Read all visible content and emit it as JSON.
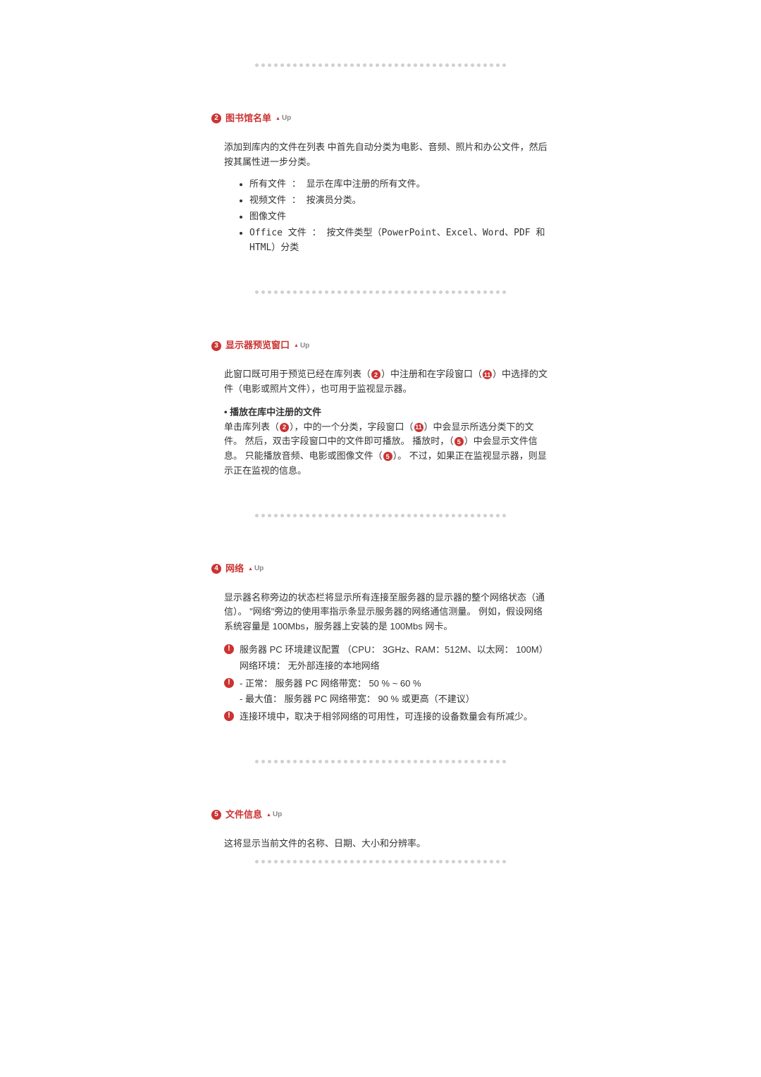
{
  "divider": {
    "dot_color": "#d0d0d0",
    "dot_count": 40
  },
  "up_label": "Up",
  "section2": {
    "num": "2",
    "title": "图书馆名单",
    "intro": "添加到库内的文件在列表 中首先自动分类为电影、音频、照片和办公文件，然后按其属性进一步分类。",
    "items": [
      "所有文件 ： 显示在库中注册的所有文件。",
      "视频文件 ： 按演员分类。",
      "图像文件",
      "Office 文件 ： 按文件类型（PowerPoint、Excel、Word、PDF 和 HTML）分类"
    ]
  },
  "section3": {
    "num": "3",
    "title": "显示器预览窗口",
    "intro_a": "此窗口既可用于预览已经在库列表（",
    "ref1": "2",
    "intro_b": "）中注册和在字段窗口（",
    "ref2": "11",
    "intro_c": "）中选择的文件（电影或照片文件），也可用于监视显示器。",
    "sub_title": "播放在库中注册的文件",
    "sub_a": "单击库列表（",
    "sub_ref1": "2",
    "sub_b": "），中的一个分类，字段窗口（",
    "sub_ref2": "11",
    "sub_c": "）中会显示所选分类下的文件。 然后，双击字段窗口中的文件即可播放。 播放时，（",
    "sub_ref3": "5",
    "sub_d": "）中会显示文件信息。 只能播放音频、电影或图像文件（",
    "sub_ref4": "5",
    "sub_e": "）。 不过，如果正在监视显示器，则显示正在监视的信息。"
  },
  "section4": {
    "num": "4",
    "title": "网络",
    "intro": "显示器名称旁边的状态栏将显示所有连接至服务器的显示器的整个网络状态（通信）。 \"网络\"旁边的使用率指示条显示服务器的网络通信测量。 例如，假设网络系统容量是 100Mbs，服务器上安装的是 100Mbs 网卡。",
    "note1_l1": "服务器 PC 环境建议配置 （CPU： 3GHz、RAM：512M、以太网： 100M）",
    "note1_l2": "网络环境： 无外部连接的本地网络",
    "note2_l1": "- 正常： 服务器 PC 网络带宽： 50 % ~ 60 %",
    "note2_l2": "- 最大值： 服务器 PC 网络带宽： 90 % 或更高（不建议）",
    "note3": "连接环境中，取决于相邻网络的可用性，可连接的设备数量会有所减少。"
  },
  "section5": {
    "num": "5",
    "title": "文件信息",
    "intro": "这将显示当前文件的名称、日期、大小和分辨率。"
  }
}
